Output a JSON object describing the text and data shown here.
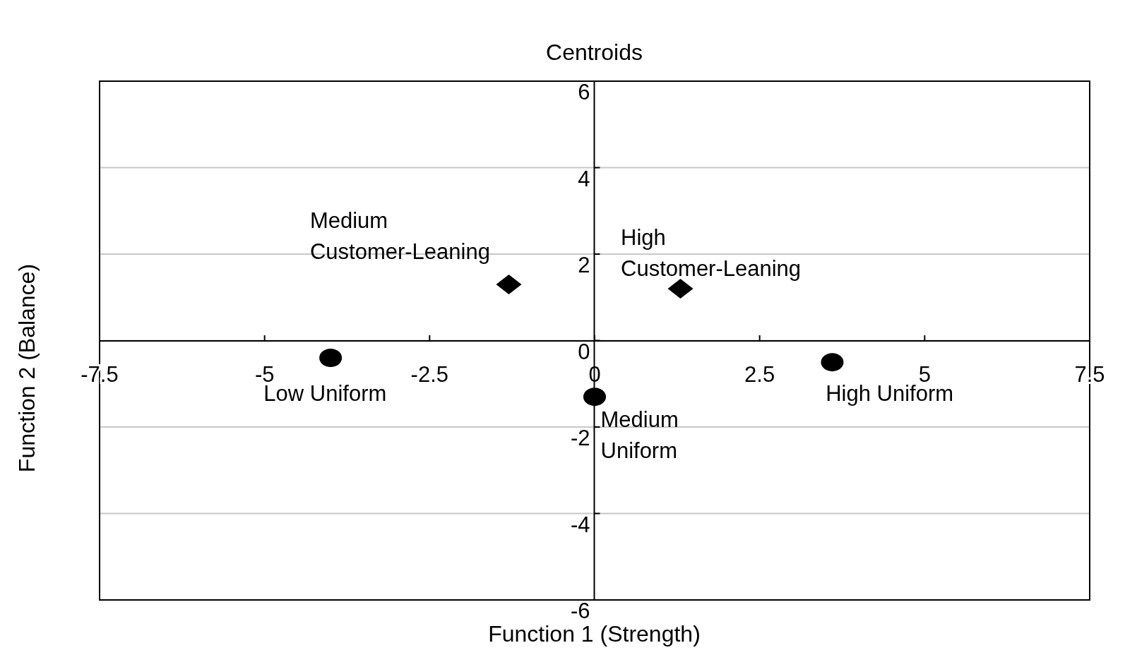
{
  "chart_data": {
    "type": "scatter",
    "title": "Centroids",
    "xlabel": "Function 1 (Strength)",
    "ylabel": "Function 2 (Balance)",
    "xlim": [
      -7.5,
      7.5
    ],
    "xticks": [
      -7.5,
      -5,
      -2.5,
      0,
      2.5,
      5,
      7.5
    ],
    "ylim": [
      -6,
      6
    ],
    "yticks": [
      -6,
      -4,
      -2,
      0,
      2,
      4,
      6
    ],
    "grid": "y",
    "series": [
      {
        "color": "#000000",
        "marker": "circle",
        "x": [
          -4.0,
          0.0,
          3.6
        ],
        "values": [
          -0.4,
          -1.3,
          -0.5
        ]
      },
      {
        "color": "#000000",
        "marker": "diamond",
        "x": [
          -1.3,
          1.3
        ],
        "values": [
          1.3,
          1.2
        ]
      }
    ],
    "annotations": [
      {
        "text": "Medium\nCustomer-Leaning",
        "x": -1.3,
        "y": 1.3
      },
      {
        "text": "High\nCustomer-Leaning",
        "x": 1.3,
        "y": 1.2
      },
      {
        "text": "Low Uniform",
        "x": -4.0,
        "y": -0.4
      },
      {
        "text": "Medium\nUniform",
        "x": 0.0,
        "y": -1.3
      },
      {
        "text": "High Uniform",
        "x": 3.6,
        "y": -0.5
      }
    ]
  }
}
